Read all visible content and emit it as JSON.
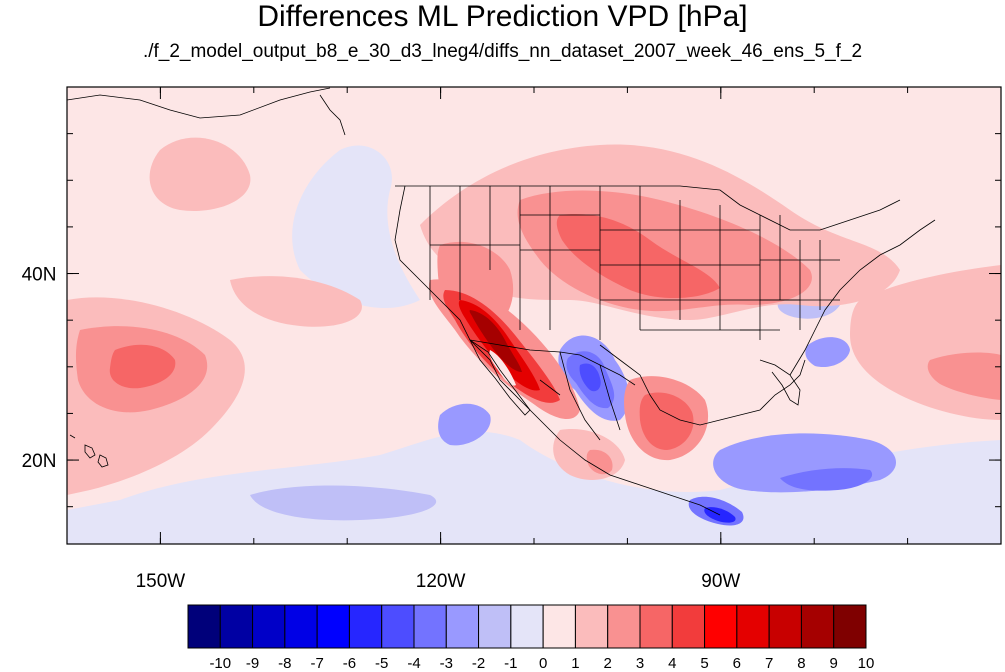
{
  "title": "Differences ML Prediction VPD [hPa]",
  "subtitle": "./f_2_model_output_b8_e_30_d3_lneg4/diffs_nn_dataset_2007_week_46_ens_5_f_2",
  "map": {
    "projection": "cylindrical-equidistant",
    "lon_range": [
      -160,
      -60
    ],
    "lat_range": [
      11,
      60
    ],
    "x_ticks": [
      {
        "lon": -150,
        "label": "150W"
      },
      {
        "lon": -120,
        "label": "120W"
      },
      {
        "lon": -90,
        "label": "90W"
      }
    ],
    "y_ticks": [
      {
        "lat": 40,
        "label": "40N"
      },
      {
        "lat": 20,
        "label": "20N"
      }
    ],
    "background_color": "#fde6e6",
    "boundaries": "coastlines, US states, Canada, Mexico"
  },
  "colorbar": {
    "labels": [
      "-10",
      "-9",
      "-8",
      "-7",
      "-6",
      "-5",
      "-4",
      "-3",
      "-2",
      "-1",
      "0",
      "1",
      "2",
      "3",
      "4",
      "5",
      "6",
      "7",
      "8",
      "9",
      "10"
    ],
    "colors": [
      "#00007a",
      "#0000a3",
      "#0000c8",
      "#0000e6",
      "#0000ff",
      "#2626ff",
      "#4d4dff",
      "#7373ff",
      "#9999ff",
      "#bfbff7",
      "#e4e4f8",
      "#fde6e6",
      "#fbbcbc",
      "#f99191",
      "#f66666",
      "#f23c3c",
      "#ff0000",
      "#e40000",
      "#c80000",
      "#a50000",
      "#7f0000"
    ]
  }
}
